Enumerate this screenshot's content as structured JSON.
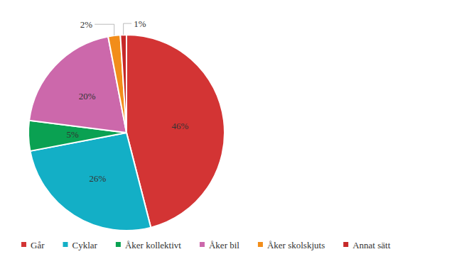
{
  "chart_data": {
    "type": "pie",
    "categories": [
      "Går",
      "Cyklar",
      "Åker kollektivt",
      "Åker bil",
      "Åker skolskjuts",
      "Annat sätt"
    ],
    "values": [
      46,
      26,
      5,
      20,
      2,
      1
    ],
    "value_labels": [
      "46%",
      "26%",
      "5%",
      "20%",
      "2%",
      "1%"
    ],
    "colors": [
      "#d33434",
      "#13afc6",
      "#0aa152",
      "#cc68ab",
      "#f28d1a",
      "#c62828"
    ],
    "data_labels": true,
    "legend": "bottom"
  }
}
